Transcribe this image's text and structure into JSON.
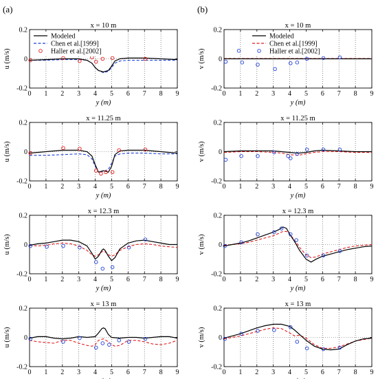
{
  "panel_labels": [
    "(a)",
    "(b)"
  ],
  "colors": {
    "modeled": "#000000",
    "chen": "#e41a1c",
    "chen_alt": "#1f3fd6",
    "haller": "#1f3fd6",
    "haller_alt": "#e41a1c"
  },
  "chart_data": [
    {
      "type": "line",
      "col": 0,
      "row": 0,
      "title": "x = 10 m",
      "xlabel": "y (m)",
      "ylabel": "u (m/s)",
      "xlim": [
        0,
        9
      ],
      "ylim": [
        -0.2,
        0.2
      ],
      "xticks": [
        0,
        1,
        2,
        3,
        4,
        5,
        6,
        7,
        8,
        9
      ],
      "yticks": [
        -0.2,
        0,
        0.2
      ],
      "grid": "vertical-dotted",
      "legend_position": "top-left",
      "chen_color": "#1f3fd6",
      "haller_color": "#e41a1c",
      "legend": [
        "Modeled",
        "Chen et al.[1999]",
        "Haller et al.[2002]"
      ],
      "modeled": {
        "x": [
          0,
          1,
          2,
          3,
          3.5,
          3.8,
          4.0,
          4.2,
          4.5,
          4.8,
          5.0,
          5.2,
          5.5,
          6,
          7,
          8,
          9
        ],
        "y": [
          -0.01,
          -0.005,
          0,
          0,
          -0.01,
          -0.03,
          -0.06,
          -0.08,
          -0.09,
          -0.08,
          -0.05,
          -0.015,
          0,
          0.005,
          0.005,
          0,
          -0.005
        ]
      },
      "chen": {
        "x": [
          0,
          1,
          2,
          3,
          3.5,
          3.8,
          4.0,
          4.2,
          4.5,
          4.8,
          5.0,
          5.2,
          5.5,
          6,
          7,
          8,
          9
        ],
        "y": [
          -0.01,
          -0.01,
          -0.005,
          -0.005,
          -0.01,
          -0.03,
          -0.06,
          -0.08,
          -0.095,
          -0.085,
          -0.06,
          -0.03,
          -0.015,
          -0.01,
          -0.01,
          -0.01,
          -0.01
        ]
      },
      "haller": {
        "x": [
          0.05,
          2.05,
          3.05,
          3.8,
          4.05,
          4.45,
          5.05,
          7.05
        ],
        "y": [
          -0.01,
          0.005,
          -0.015,
          0.01,
          -0.02,
          0,
          0.005,
          0
        ]
      }
    },
    {
      "type": "line",
      "col": 0,
      "row": 1,
      "title": "x = 11.25 m",
      "xlabel": "y (m)",
      "ylabel": "u (m/s)",
      "xlim": [
        0,
        9
      ],
      "ylim": [
        -0.2,
        0.2
      ],
      "xticks": [
        0,
        1,
        2,
        3,
        4,
        5,
        6,
        7,
        8,
        9
      ],
      "yticks": [
        -0.2,
        0,
        0.2
      ],
      "grid": "vertical-dotted",
      "chen_color": "#1f3fd6",
      "haller_color": "#e41a1c",
      "modeled": {
        "x": [
          0,
          1,
          2,
          3,
          3.5,
          3.8,
          4.0,
          4.2,
          4.5,
          4.8,
          5.0,
          5.2,
          5.5,
          6,
          7,
          8,
          9
        ],
        "y": [
          -0.01,
          0,
          0.01,
          0.01,
          0,
          -0.03,
          -0.09,
          -0.14,
          -0.13,
          -0.14,
          -0.1,
          -0.02,
          0.005,
          0.01,
          0.01,
          0,
          -0.01
        ]
      },
      "chen": {
        "x": [
          0,
          1,
          2,
          3,
          3.5,
          3.8,
          4.0,
          4.2,
          4.5,
          4.8,
          5.0,
          5.2,
          5.5,
          6,
          7,
          8,
          9
        ],
        "y": [
          -0.025,
          -0.025,
          -0.02,
          -0.015,
          -0.02,
          -0.05,
          -0.1,
          -0.14,
          -0.135,
          -0.12,
          -0.08,
          -0.03,
          -0.015,
          -0.01,
          -0.01,
          -0.015,
          -0.015
        ]
      },
      "haller": {
        "x": [
          0.05,
          2.05,
          3.05,
          4.05,
          4.35,
          4.65,
          5.05,
          5.45,
          7.05
        ],
        "y": [
          -0.01,
          0.025,
          0.02,
          -0.13,
          -0.15,
          -0.14,
          -0.14,
          0.01,
          0.015
        ]
      }
    },
    {
      "type": "line",
      "col": 0,
      "row": 2,
      "title": "x = 12.3 m",
      "xlabel": "y (m)",
      "ylabel": "u (m/s)",
      "xlim": [
        0,
        9
      ],
      "ylim": [
        -0.2,
        0.2
      ],
      "xticks": [
        0,
        1,
        2,
        3,
        4,
        5,
        6,
        7,
        8,
        9
      ],
      "yticks": [
        -0.2,
        0,
        0.2
      ],
      "grid": "vertical-dotted",
      "chen_color": "#e41a1c",
      "haller_color": "#1f3fd6",
      "modeled": {
        "x": [
          0,
          0.5,
          1,
          1.5,
          2,
          2.5,
          3,
          3.5,
          3.8,
          4.0,
          4.2,
          4.4,
          4.5,
          4.6,
          4.8,
          5.0,
          5.2,
          5.5,
          6,
          6.5,
          7,
          7.5,
          8,
          8.5,
          9
        ],
        "y": [
          -0.005,
          0.005,
          0.01,
          0.02,
          0.03,
          0.03,
          0.02,
          -0.01,
          -0.06,
          -0.1,
          -0.08,
          -0.04,
          -0.03,
          -0.04,
          -0.08,
          -0.11,
          -0.09,
          -0.03,
          0.01,
          0.025,
          0.03,
          0.02,
          0.01,
          0,
          0
        ]
      },
      "chen": {
        "x": [
          0,
          0.5,
          1,
          1.5,
          2,
          2.5,
          3,
          3.5,
          3.8,
          4.0,
          4.2,
          4.4,
          4.5,
          4.6,
          4.8,
          5.0,
          5.2,
          5.5,
          6,
          6.5,
          7,
          7.5,
          8,
          8.5,
          9
        ],
        "y": [
          -0.005,
          -0.01,
          -0.005,
          0.005,
          0.01,
          0.005,
          -0.01,
          -0.04,
          -0.07,
          -0.08,
          -0.07,
          -0.05,
          -0.045,
          -0.05,
          -0.07,
          -0.08,
          -0.07,
          -0.04,
          -0.015,
          0,
          0.005,
          0,
          -0.01,
          -0.015,
          -0.02
        ]
      },
      "haller": {
        "x": [
          0.05,
          1.05,
          2.05,
          3.05,
          4.05,
          4.45,
          5.05,
          6.05,
          7.05
        ],
        "y": [
          -0.01,
          -0.015,
          -0.01,
          -0.02,
          -0.12,
          -0.165,
          -0.155,
          -0.02,
          0.035
        ]
      }
    },
    {
      "type": "line",
      "col": 0,
      "row": 3,
      "title": "x = 13 m",
      "xlabel": "y (m)",
      "ylabel": "u (m/s)",
      "xlim": [
        0,
        9
      ],
      "ylim": [
        -0.2,
        0.2
      ],
      "xticks": [
        0,
        1,
        2,
        3,
        4,
        5,
        6,
        7,
        8,
        9
      ],
      "yticks": [
        -0.2,
        0,
        0.2
      ],
      "grid": "vertical-dotted",
      "chen_color": "#e41a1c",
      "haller_color": "#1f3fd6",
      "modeled": {
        "x": [
          0,
          0.5,
          1,
          1.5,
          2,
          2.5,
          3,
          3.5,
          4,
          4.2,
          4.4,
          4.5,
          4.6,
          4.8,
          5,
          5.5,
          6,
          6.5,
          7,
          7.5,
          8,
          8.5,
          9
        ],
        "y": [
          -0.005,
          0.005,
          0.005,
          -0.005,
          -0.01,
          -0.005,
          0.005,
          0,
          0.005,
          0.03,
          0.06,
          0.065,
          0.06,
          0.02,
          0,
          -0.005,
          0,
          0,
          -0.005,
          0,
          0.005,
          0.005,
          -0.005
        ]
      },
      "chen": {
        "x": [
          0,
          0.5,
          1,
          1.5,
          2,
          2.5,
          3,
          3.5,
          3.8,
          4,
          4.2,
          4.5,
          4.8,
          5,
          5.2,
          5.5,
          6,
          6.5,
          7,
          7.5,
          8,
          8.5,
          9
        ],
        "y": [
          -0.02,
          -0.03,
          -0.035,
          -0.04,
          -0.02,
          -0.02,
          -0.04,
          -0.055,
          -0.06,
          -0.05,
          -0.02,
          -0.01,
          -0.03,
          -0.05,
          -0.06,
          -0.055,
          -0.02,
          -0.02,
          -0.03,
          -0.045,
          -0.05,
          -0.04,
          -0.02
        ]
      },
      "haller": {
        "x": [
          0.05,
          2.05,
          3.05,
          4.05,
          4.45,
          4.85,
          5.45,
          6.05,
          7.05
        ],
        "y": [
          -0.01,
          -0.03,
          -0.005,
          -0.07,
          -0.04,
          -0.05,
          -0.02,
          -0.03,
          -0.01
        ]
      }
    },
    {
      "type": "line",
      "col": 1,
      "row": 0,
      "title": "x = 10 m",
      "xlabel": "y (m)",
      "ylabel": "v (m/s)",
      "xlim": [
        0,
        9
      ],
      "ylim": [
        -0.2,
        0.2
      ],
      "xticks": [
        0,
        1,
        2,
        3,
        4,
        5,
        6,
        7,
        8,
        9
      ],
      "yticks": [
        -0.2,
        0,
        0.2
      ],
      "grid": "vertical-dotted",
      "legend_position": "top-center",
      "chen_color": "#e41a1c",
      "haller_color": "#1f3fd6",
      "legend": [
        "Modeled",
        "Chen et al.[1999]",
        "Haller et al.[2002]"
      ],
      "modeled": {
        "x": [
          0,
          1,
          2,
          3,
          4,
          5,
          6,
          7,
          8,
          9
        ],
        "y": [
          0,
          0,
          0,
          0,
          0,
          0,
          0,
          0,
          0,
          0
        ]
      },
      "chen": {
        "x": [
          0,
          1,
          2,
          3,
          4,
          5,
          6,
          7,
          8,
          9
        ],
        "y": [
          0.002,
          0.002,
          0.002,
          0.002,
          0.002,
          0.002,
          0.002,
          0.002,
          0.002,
          0.002
        ]
      },
      "haller": {
        "x": [
          0.1,
          0.9,
          1.1,
          2.05,
          3.1,
          4.05,
          4.45,
          5.05,
          6.05,
          7.05
        ],
        "y": [
          -0.02,
          0.055,
          -0.025,
          -0.04,
          -0.07,
          -0.03,
          -0.025,
          0,
          0.005,
          0.01
        ]
      }
    },
    {
      "type": "line",
      "col": 1,
      "row": 1,
      "title": "x = 11.25 m",
      "xlabel": "y (m)",
      "ylabel": "v (m/s)",
      "xlim": [
        0,
        9
      ],
      "ylim": [
        -0.2,
        0.2
      ],
      "xticks": [
        0,
        1,
        2,
        3,
        4,
        5,
        6,
        7,
        8,
        9
      ],
      "yticks": [
        -0.2,
        0,
        0.2
      ],
      "grid": "vertical-dotted",
      "chen_color": "#e41a1c",
      "haller_color": "#1f3fd6",
      "modeled": {
        "x": [
          0,
          1,
          2,
          3,
          3.5,
          4,
          4.5,
          5,
          5.5,
          6,
          7,
          8,
          9
        ],
        "y": [
          0,
          0.005,
          0.005,
          0.005,
          0,
          -0.005,
          -0.01,
          -0.005,
          0.005,
          0.01,
          0.005,
          0,
          0
        ]
      },
      "chen": {
        "x": [
          0,
          1,
          2,
          3,
          3.5,
          4,
          4.5,
          5,
          5.5,
          6,
          7,
          8,
          9
        ],
        "y": [
          -0.005,
          0,
          0,
          -0.005,
          -0.01,
          -0.02,
          -0.025,
          -0.015,
          -0.005,
          0,
          0,
          -0.005,
          -0.005
        ]
      },
      "haller": {
        "x": [
          0.1,
          1.05,
          2.05,
          3.05,
          3.9,
          4.05,
          4.45,
          5.05,
          6.05,
          7.05
        ],
        "y": [
          -0.055,
          -0.03,
          -0.03,
          -0.005,
          -0.03,
          -0.045,
          -0.015,
          0.015,
          0.015,
          0.015
        ]
      }
    },
    {
      "type": "line",
      "col": 1,
      "row": 2,
      "title": "x = 12.3 m",
      "xlabel": "y (m)",
      "ylabel": "v (m/s)",
      "xlim": [
        0,
        9
      ],
      "ylim": [
        -0.2,
        0.2
      ],
      "xticks": [
        0,
        1,
        2,
        3,
        4,
        5,
        6,
        7,
        8,
        9
      ],
      "yticks": [
        -0.2,
        0,
        0.2
      ],
      "grid": "vertical-dotted",
      "chen_color": "#e41a1c",
      "haller_color": "#1f3fd6",
      "modeled": {
        "x": [
          0,
          0.5,
          1,
          1.5,
          2,
          2.5,
          3,
          3.3,
          3.6,
          3.8,
          4,
          4.3,
          4.6,
          5,
          5.3,
          5.6,
          6,
          6.5,
          7,
          7.5,
          8,
          8.5,
          9
        ],
        "y": [
          -0.01,
          0,
          0.01,
          0.025,
          0.045,
          0.065,
          0.085,
          0.1,
          0.12,
          0.11,
          0.07,
          0.02,
          -0.04,
          -0.1,
          -0.12,
          -0.1,
          -0.08,
          -0.065,
          -0.05,
          -0.035,
          -0.025,
          -0.015,
          -0.01
        ]
      },
      "chen": {
        "x": [
          0,
          0.5,
          1,
          1.5,
          2,
          2.5,
          3,
          3.3,
          3.6,
          3.8,
          4,
          4.3,
          4.6,
          5,
          5.3,
          5.6,
          6,
          6.5,
          7,
          7.5,
          8,
          8.5,
          9
        ],
        "y": [
          -0.005,
          0,
          0.005,
          0.015,
          0.03,
          0.045,
          0.06,
          0.075,
          0.09,
          0.09,
          0.07,
          0.03,
          -0.02,
          -0.07,
          -0.09,
          -0.085,
          -0.065,
          -0.05,
          -0.035,
          -0.02,
          -0.01,
          -0.005,
          0
        ]
      },
      "haller": {
        "x": [
          0.05,
          1.05,
          2.05,
          3.05,
          3.5,
          4.05,
          4.4,
          5.05,
          6.05,
          7.05
        ],
        "y": [
          -0.01,
          0.015,
          0.07,
          0.085,
          0.11,
          0.07,
          0.03,
          -0.075,
          -0.075,
          -0.045
        ]
      }
    },
    {
      "type": "line",
      "col": 1,
      "row": 3,
      "title": "x = 13 m",
      "xlabel": "y (m)",
      "ylabel": "v (m/s)",
      "xlim": [
        0,
        9
      ],
      "ylim": [
        -0.2,
        0.2
      ],
      "xticks": [
        0,
        1,
        2,
        3,
        4,
        5,
        6,
        7,
        8,
        9
      ],
      "yticks": [
        -0.2,
        0,
        0.2
      ],
      "grid": "vertical-dotted",
      "chen_color": "#e41a1c",
      "haller_color": "#1f3fd6",
      "modeled": {
        "x": [
          0,
          0.5,
          1,
          1.5,
          2,
          2.5,
          3,
          3.5,
          4,
          4.3,
          4.6,
          5,
          5.5,
          6,
          6.5,
          7,
          7.5,
          8,
          8.5,
          9
        ],
        "y": [
          -0.005,
          0.01,
          0.025,
          0.045,
          0.065,
          0.08,
          0.09,
          0.09,
          0.075,
          0.05,
          0.02,
          -0.02,
          -0.06,
          -0.08,
          -0.085,
          -0.08,
          -0.05,
          -0.025,
          -0.01,
          -0.005
        ]
      },
      "chen": {
        "x": [
          0,
          0.5,
          1,
          1.5,
          2,
          2.5,
          3,
          3.5,
          4,
          4.3,
          4.6,
          5,
          5.5,
          6,
          6.5,
          7,
          7.5,
          8,
          8.5,
          9
        ],
        "y": [
          -0.01,
          0,
          0.01,
          0.025,
          0.04,
          0.055,
          0.065,
          0.06,
          0.03,
          0.01,
          0.015,
          -0.005,
          -0.05,
          -0.075,
          -0.075,
          -0.065,
          -0.045,
          -0.025,
          -0.015,
          -0.005
        ]
      },
      "haller": {
        "x": [
          0.05,
          1.05,
          2.05,
          3.05,
          4.05,
          4.45,
          5.05,
          6.05,
          7.05
        ],
        "y": [
          -0.01,
          0.025,
          0.045,
          0.05,
          0.07,
          -0.03,
          -0.075,
          -0.08,
          -0.07
        ]
      }
    }
  ]
}
